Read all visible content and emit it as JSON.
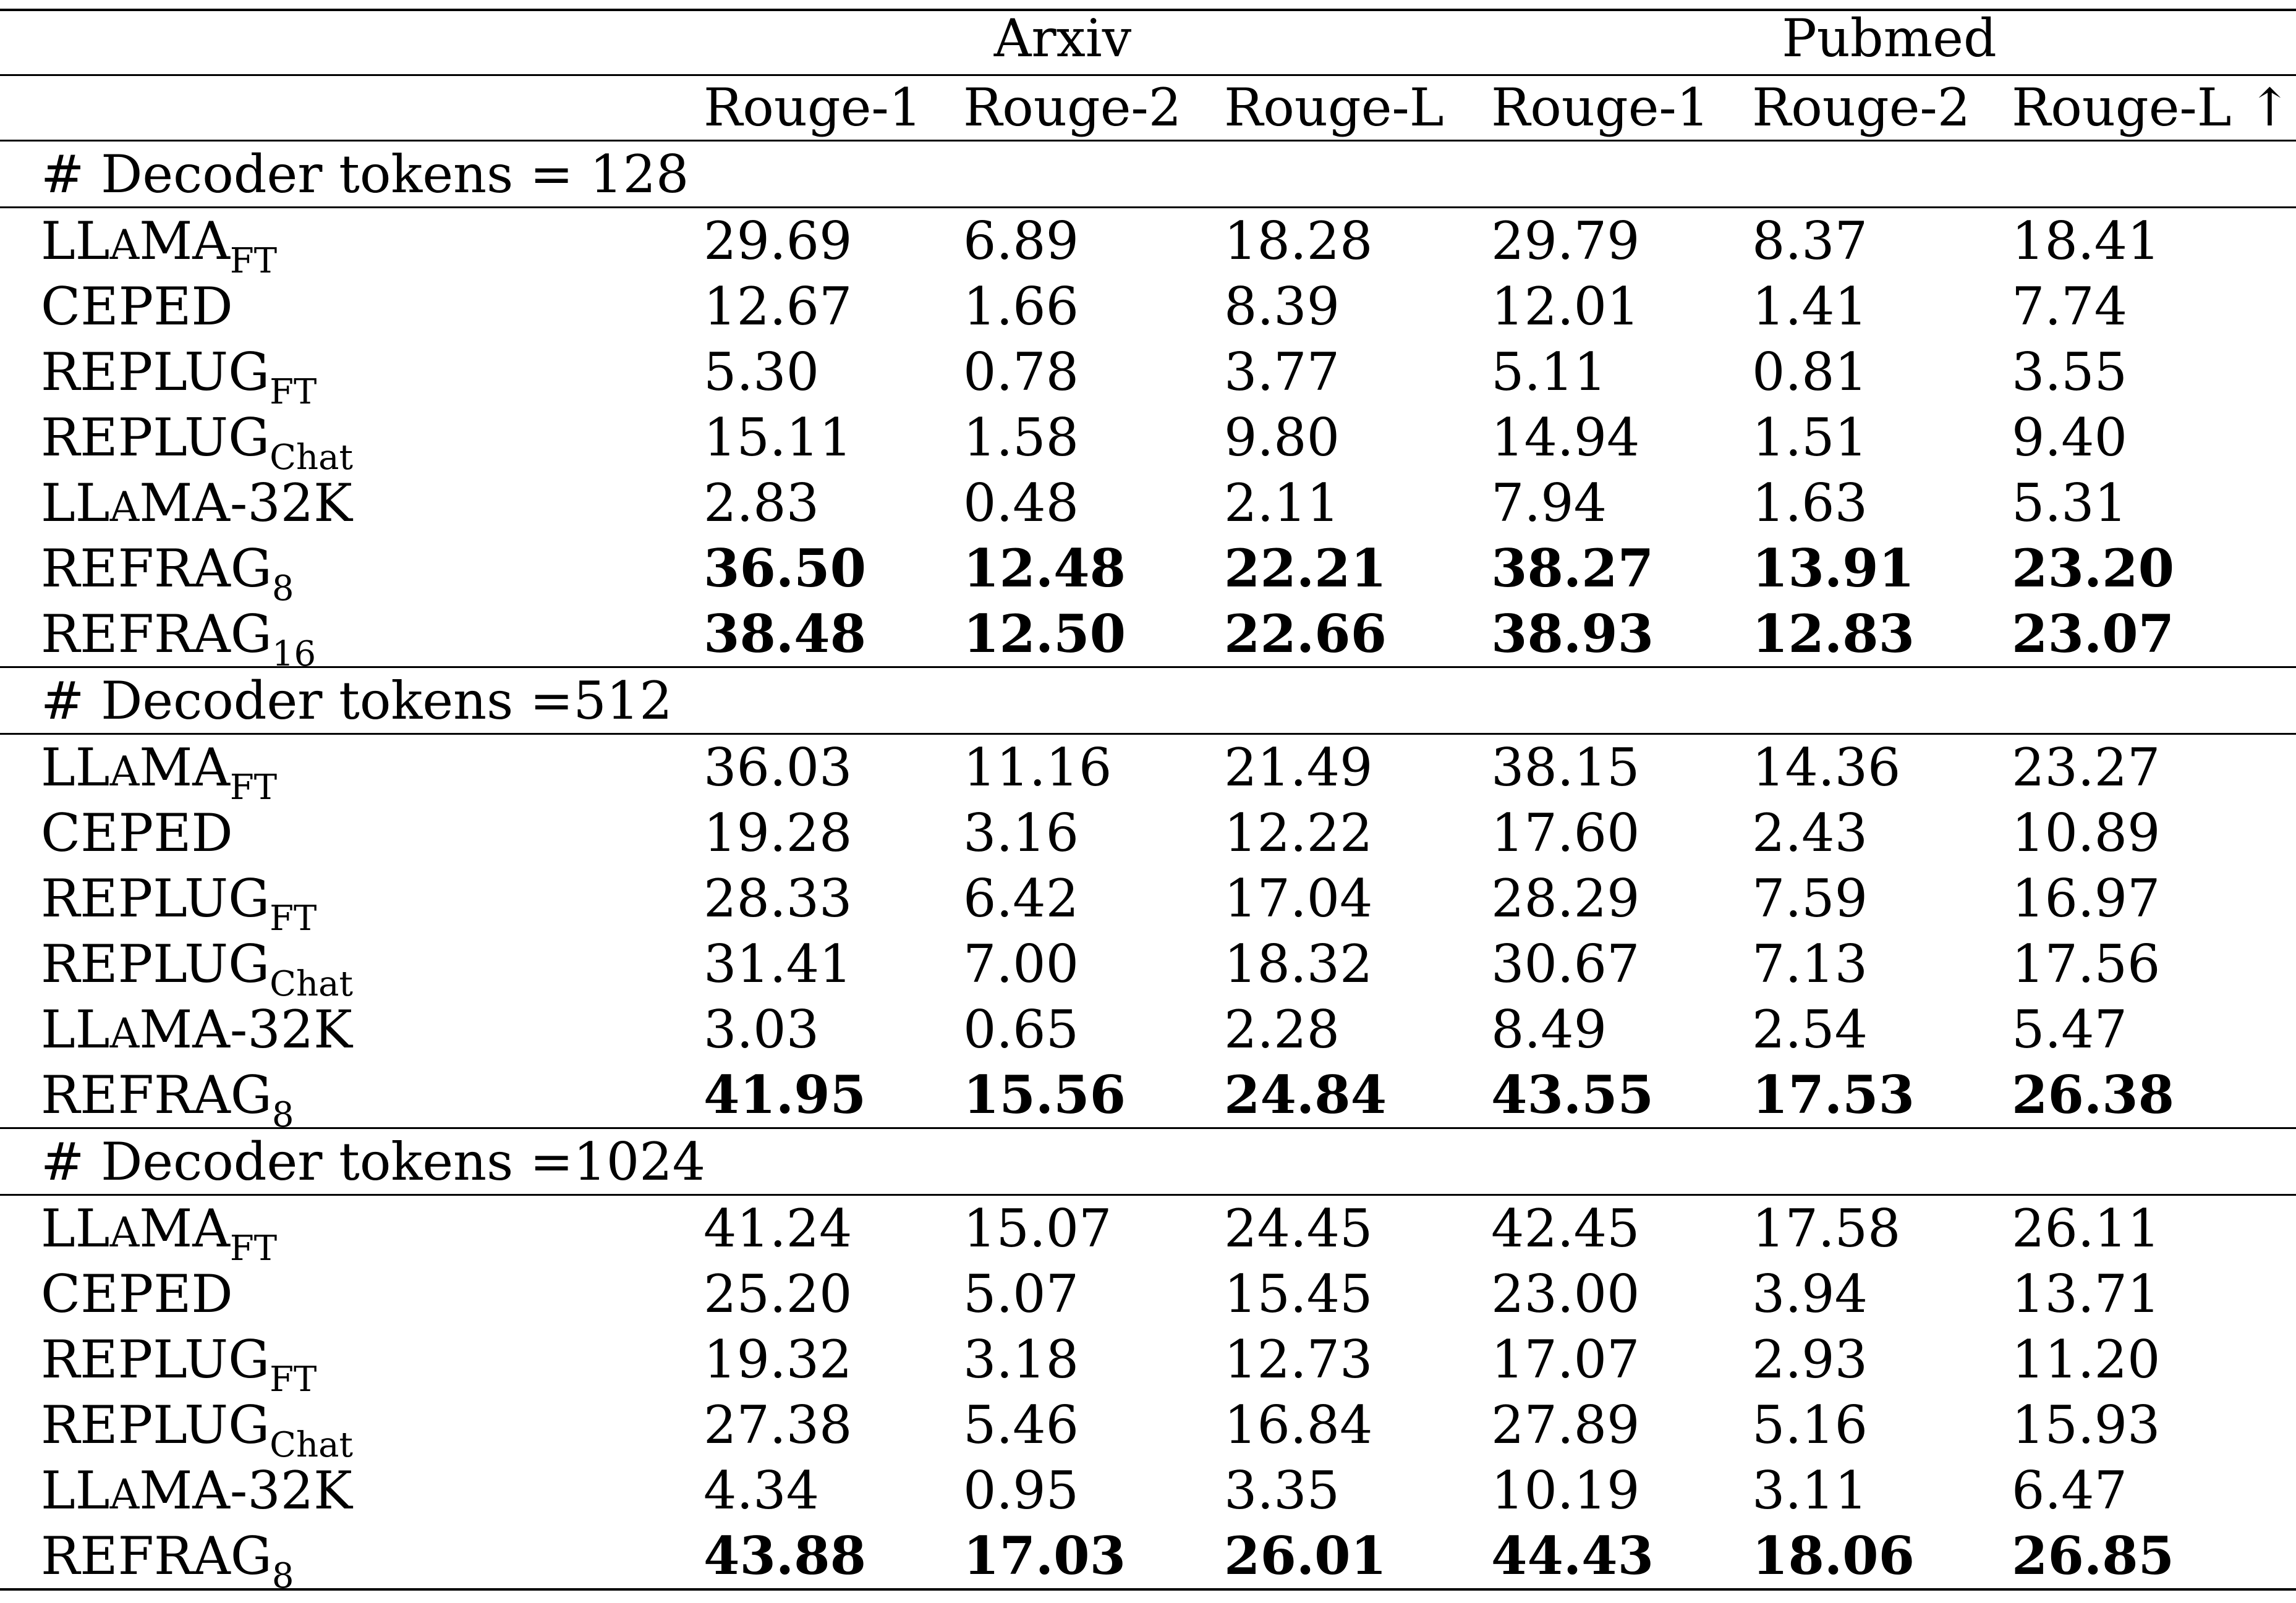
{
  "table": {
    "group_headers": [
      "Arxiv",
      "Pubmed"
    ],
    "columns": [
      "Rouge-1",
      "Rouge-2",
      "Rouge-L",
      "Rouge-1",
      "Rouge-2",
      "Rouge-L ↑"
    ],
    "sections": [
      {
        "label": "# Decoder tokens = 128",
        "rows": [
          {
            "method": {
              "main": "LL",
              "sc": "A",
              "rest": "MA",
              "sub": "FT"
            },
            "values": [
              "29.69",
              "6.89",
              "18.28",
              "29.79",
              "8.37",
              "18.41"
            ],
            "bold": false
          },
          {
            "method": {
              "main": "CEPED",
              "sc": "",
              "rest": "",
              "sub": ""
            },
            "values": [
              "12.67",
              "1.66",
              "8.39",
              "12.01",
              "1.41",
              "7.74"
            ],
            "bold": false
          },
          {
            "method": {
              "main": "REPLUG",
              "sc": "",
              "rest": "",
              "sub": "FT"
            },
            "values": [
              "5.30",
              "0.78",
              "3.77",
              "5.11",
              "0.81",
              "3.55"
            ],
            "bold": false
          },
          {
            "method": {
              "main": "REPLUG",
              "sc": "",
              "rest": "",
              "sub": "Chat"
            },
            "values": [
              "15.11",
              "1.58",
              "9.80",
              "14.94",
              "1.51",
              "9.40"
            ],
            "bold": false
          },
          {
            "method": {
              "main": "LL",
              "sc": "A",
              "rest": "MA-32K",
              "sub": ""
            },
            "values": [
              "2.83",
              "0.48",
              "2.11",
              "7.94",
              "1.63",
              "5.31"
            ],
            "bold": false
          },
          {
            "method": {
              "main": "REFRAG",
              "sc": "",
              "rest": "",
              "sub": "8"
            },
            "values": [
              "36.50",
              "12.48",
              "22.21",
              "38.27",
              "13.91",
              "23.20"
            ],
            "bold": true
          },
          {
            "method": {
              "main": "REFRAG",
              "sc": "",
              "rest": "",
              "sub": "16"
            },
            "values": [
              "38.48",
              "12.50",
              "22.66",
              "38.93",
              "12.83",
              "23.07"
            ],
            "bold": true
          }
        ]
      },
      {
        "label": "# Decoder tokens =512",
        "rows": [
          {
            "method": {
              "main": "LL",
              "sc": "A",
              "rest": "MA",
              "sub": "FT"
            },
            "values": [
              "36.03",
              "11.16",
              "21.49",
              "38.15",
              "14.36",
              "23.27"
            ],
            "bold": false
          },
          {
            "method": {
              "main": "CEPED",
              "sc": "",
              "rest": "",
              "sub": ""
            },
            "values": [
              "19.28",
              "3.16",
              "12.22",
              "17.60",
              "2.43",
              "10.89"
            ],
            "bold": false
          },
          {
            "method": {
              "main": "REPLUG",
              "sc": "",
              "rest": "",
              "sub": "FT"
            },
            "values": [
              "28.33",
              "6.42",
              "17.04",
              "28.29",
              "7.59",
              "16.97"
            ],
            "bold": false
          },
          {
            "method": {
              "main": "REPLUG",
              "sc": "",
              "rest": "",
              "sub": "Chat"
            },
            "values": [
              "31.41",
              "7.00",
              "18.32",
              "30.67",
              "7.13",
              "17.56"
            ],
            "bold": false
          },
          {
            "method": {
              "main": "LL",
              "sc": "A",
              "rest": "MA-32K",
              "sub": ""
            },
            "values": [
              "3.03",
              "0.65",
              "2.28",
              "8.49",
              "2.54",
              "5.47"
            ],
            "bold": false
          },
          {
            "method": {
              "main": "REFRAG",
              "sc": "",
              "rest": "",
              "sub": "8"
            },
            "values": [
              "41.95",
              "15.56",
              "24.84",
              "43.55",
              "17.53",
              "26.38"
            ],
            "bold": true
          }
        ]
      },
      {
        "label": "# Decoder tokens =1024",
        "rows": [
          {
            "method": {
              "main": "LL",
              "sc": "A",
              "rest": "MA",
              "sub": "FT"
            },
            "values": [
              "41.24",
              "15.07",
              "24.45",
              "42.45",
              "17.58",
              "26.11"
            ],
            "bold": false
          },
          {
            "method": {
              "main": "CEPED",
              "sc": "",
              "rest": "",
              "sub": ""
            },
            "values": [
              "25.20",
              "5.07",
              "15.45",
              "23.00",
              "3.94",
              "13.71"
            ],
            "bold": false
          },
          {
            "method": {
              "main": "REPLUG",
              "sc": "",
              "rest": "",
              "sub": "FT"
            },
            "values": [
              "19.32",
              "3.18",
              "12.73",
              "17.07",
              "2.93",
              "11.20"
            ],
            "bold": false
          },
          {
            "method": {
              "main": "REPLUG",
              "sc": "",
              "rest": "",
              "sub": "Chat"
            },
            "values": [
              "27.38",
              "5.46",
              "16.84",
              "27.89",
              "5.16",
              "15.93"
            ],
            "bold": false
          },
          {
            "method": {
              "main": "LL",
              "sc": "A",
              "rest": "MA-32K",
              "sub": ""
            },
            "values": [
              "4.34",
              "0.95",
              "3.35",
              "10.19",
              "3.11",
              "6.47"
            ],
            "bold": false
          },
          {
            "method": {
              "main": "REFRAG",
              "sc": "",
              "rest": "",
              "sub": "8"
            },
            "values": [
              "43.88",
              "17.03",
              "26.01",
              "44.43",
              "18.06",
              "26.85"
            ],
            "bold": true
          }
        ]
      }
    ]
  }
}
